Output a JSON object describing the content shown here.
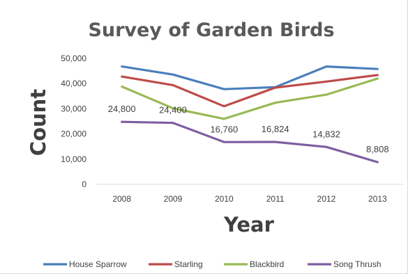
{
  "chart_data": {
    "type": "line",
    "title": "Survey of Garden Birds",
    "xlabel": "Year",
    "ylabel": "Count",
    "x": [
      "2008",
      "2009",
      "2010",
      "2011",
      "2012",
      "2013"
    ],
    "ylim": [
      0,
      50000
    ],
    "yticks": [
      "0",
      "10,000",
      "20,000",
      "30,000",
      "40,000",
      "50,000"
    ],
    "grid": false,
    "legend_position": "bottom",
    "series": [
      {
        "name": "House Sparrow",
        "color": "#4A7EBB",
        "values": [
          46800,
          43600,
          37800,
          38600,
          46800,
          45800
        ]
      },
      {
        "name": "Starling",
        "color": "#BE4B48",
        "values": [
          42800,
          39400,
          31000,
          38400,
          40800,
          43400
        ]
      },
      {
        "name": "Blackbird",
        "color": "#98B954",
        "values": [
          38800,
          30200,
          26000,
          32400,
          35600,
          42000
        ]
      },
      {
        "name": "Song Thrush",
        "color": "#7D5FA0",
        "values": [
          24800,
          24400,
          16760,
          16824,
          14832,
          8808
        ],
        "labels": [
          "24,800",
          "24,400",
          "16,760",
          "16,824",
          "14,832",
          "8,808"
        ]
      }
    ]
  }
}
